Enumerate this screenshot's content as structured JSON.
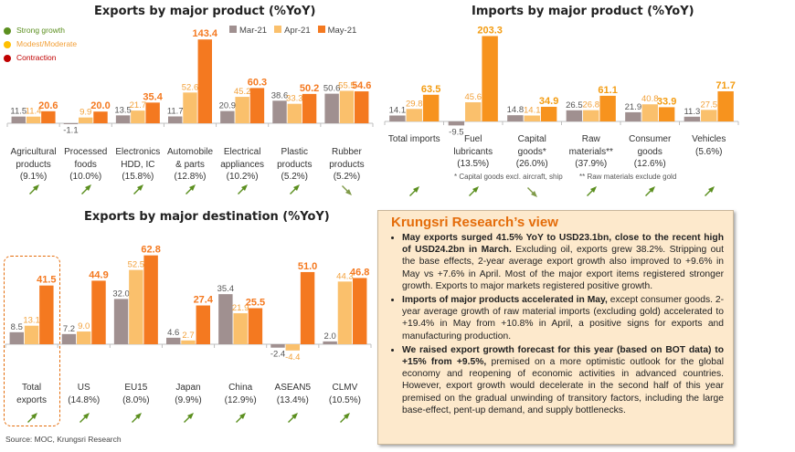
{
  "legend_status": [
    {
      "label": "Strong growth",
      "color": "#5b8f1f",
      "text_color": "#5b8f1f"
    },
    {
      "label": "Modest/Moderate",
      "color": "#ffc000",
      "text_color": "#f2a13a"
    },
    {
      "label": "Contraction",
      "color": "#c00000",
      "text_color": "#c00000"
    }
  ],
  "series_legend": [
    {
      "name": "Mar-21",
      "color": "#a09090"
    },
    {
      "name": "Apr-21",
      "color": "#fac06c"
    },
    {
      "name": "May-21",
      "color": "#f47920"
    }
  ],
  "arrow_colors": {
    "up": "#5b8f1f",
    "down": "#7f9a48"
  },
  "chart_data": [
    {
      "type": "bar",
      "title": "Exports by major product (%YoY)",
      "categories": [
        "Agricultural\nproducts\n(9.1%)",
        "Processed\nfoods\n(10.0%)",
        "Electronics\nHDD, IC\n(15.8%)",
        "Automobile\n& parts\n(12.8%)",
        "Electrical\nappliances\n(10.2%)",
        "Plastic\nproducts\n(5.2%)",
        "Rubber\nproducts\n(5.2%)"
      ],
      "series": [
        {
          "name": "Mar-21",
          "values": [
            11.5,
            -1.1,
            13.5,
            11.7,
            20.9,
            38.6,
            50.6
          ]
        },
        {
          "name": "Apr-21",
          "values": [
            11.4,
            9.9,
            21.7,
            52.6,
            45.2,
            33.3,
            55.5
          ]
        },
        {
          "name": "May-21",
          "values": [
            20.6,
            20.0,
            35.4,
            143.4,
            60.3,
            50.2,
            54.6
          ]
        }
      ],
      "trend": [
        "up",
        "up",
        "up",
        "up",
        "up",
        "up",
        "down"
      ],
      "xlabel": "",
      "ylabel": "",
      "legend": "top-right",
      "grid": false
    },
    {
      "type": "bar",
      "title": "Imports by major product (%YoY)",
      "categories": [
        "Total imports",
        "Fuel\nlubricants\n(13.5%)",
        "Capital\ngoods*\n(26.0%)",
        "Raw\nmaterials**\n(37.9%)",
        "Consumer\ngoods\n(12.6%)",
        "Vehicles\n(5.6%)"
      ],
      "series": [
        {
          "name": "Mar-21",
          "values": [
            14.1,
            -9.5,
            14.8,
            26.5,
            21.9,
            11.3
          ]
        },
        {
          "name": "Apr-21",
          "values": [
            29.8,
            45.6,
            14.1,
            26.8,
            40.8,
            27.5
          ]
        },
        {
          "name": "May-21",
          "values": [
            63.5,
            203.3,
            34.9,
            61.1,
            33.9,
            71.7
          ]
        }
      ],
      "trend": [
        "up",
        "up",
        "down",
        "up",
        "up",
        "up"
      ],
      "annotations": [
        "* Capital goods excl. aircraft, ship",
        "** Raw materials exclude gold"
      ],
      "xlabel": "",
      "ylabel": "",
      "grid": false
    },
    {
      "type": "bar",
      "title": "Exports by major destination (%YoY)",
      "categories": [
        "Total\nexports",
        "US\n(14.8%)",
        "EU15\n(8.0%)",
        "Japan\n(9.9%)",
        "China\n(12.9%)",
        "ASEAN5\n(13.4%)",
        "CLMV\n(10.5%)"
      ],
      "series": [
        {
          "name": "Mar-21",
          "values": [
            8.5,
            7.2,
            32.0,
            4.6,
            35.4,
            -2.4,
            2.0
          ]
        },
        {
          "name": "Apr-21",
          "values": [
            13.1,
            9.0,
            52.5,
            2.7,
            21.9,
            -4.4,
            44.3
          ]
        },
        {
          "name": "May-21",
          "values": [
            41.5,
            44.9,
            62.8,
            27.4,
            25.5,
            51.0,
            46.8
          ]
        }
      ],
      "trend": [
        "up",
        "up",
        "up",
        "up",
        "up",
        "up",
        "up"
      ],
      "xlabel": "",
      "ylabel": "",
      "grid": false
    }
  ],
  "source": "Source: MOC, Krungsri Research",
  "view": {
    "title": "Krungsri Research’s view",
    "bullets": [
      {
        "bold": "May exports surged 41.5% YoY to USD23.1bn, close to the recent high of USD24.2bn in March.",
        "text": " Excluding oil, exports grew 38.2%. Stripping out the base effects, 2-year average export growth also improved to +9.6% in May vs +7.6% in April. Most of the major export items registered stronger growth. Exports to major markets registered positive growth."
      },
      {
        "bold": "Imports of major products accelerated in May,",
        "text": " except consumer goods. 2-year average growth of raw material imports (excluding gold) accelerated to +19.4% in May from +10.8% in April, a positive signs for exports and manufacturing production."
      },
      {
        "bold": "We raised export growth forecast for this year (based on BOT data) to +15% from +9.5%,",
        "text": " premised on a more optimistic outlook for the global economy and reopening of economic activities in advanced countries. However, export growth would decelerate in the second half of this year premised on the gradual unwinding of transitory factors, including the large base-effect, pent-up demand, and supply bottlenecks."
      }
    ]
  }
}
